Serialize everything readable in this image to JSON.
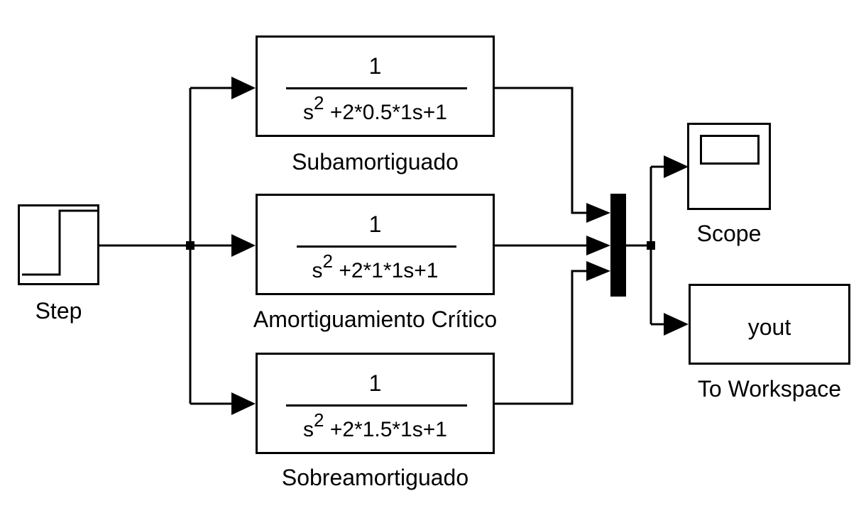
{
  "blocks": {
    "step": {
      "label": "Step"
    },
    "tf_sub": {
      "numerator": "1",
      "denominator_base": "s",
      "denominator_power": "2",
      "denominator_rest": " +2*0.5*1s+1",
      "label": "Subamortiguado"
    },
    "tf_crit": {
      "numerator": "1",
      "denominator_base": "s",
      "denominator_power": "2",
      "denominator_rest": " +2*1*1s+1",
      "label": "Amortiguamiento Crítico"
    },
    "tf_sobre": {
      "numerator": "1",
      "denominator_base": "s",
      "denominator_power": "2",
      "denominator_rest": " +2*1.5*1s+1",
      "label": "Sobreamortiguado"
    },
    "scope": {
      "label": "Scope"
    },
    "to_workspace": {
      "variable": "yout",
      "label": "To Workspace"
    }
  }
}
